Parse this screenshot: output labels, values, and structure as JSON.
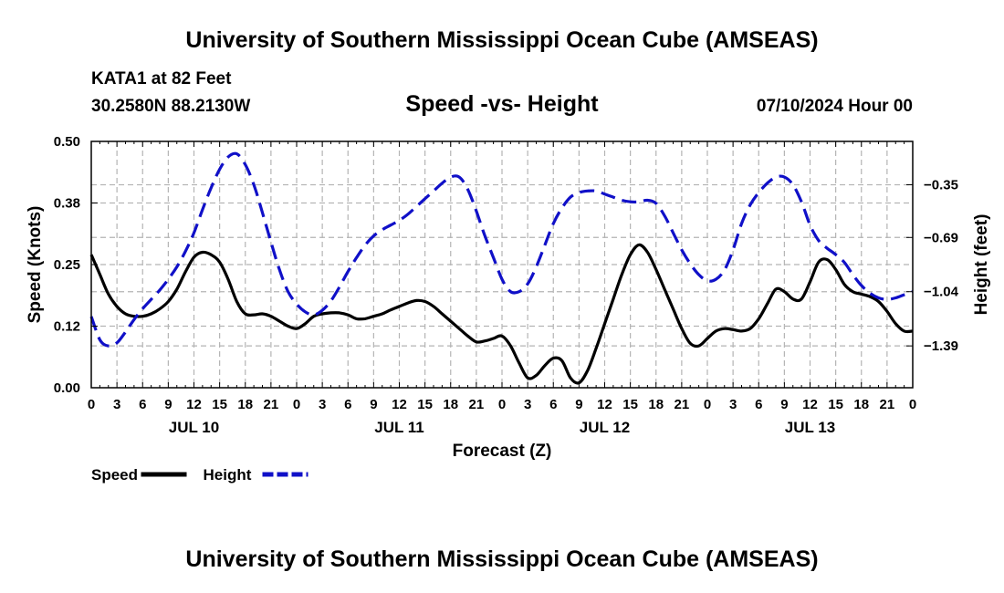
{
  "header": {
    "title": "University of Southern Mississippi Ocean Cube (AMSEAS)",
    "station": "KATA1 at 82 Feet",
    "coordinates": "30.2580N  88.2130W",
    "chart_title": "Speed -vs- Height",
    "date": "07/10/2024 Hour 00"
  },
  "footer": {
    "title": "University of Southern Mississippi Ocean Cube (AMSEAS)"
  },
  "colors": {
    "speed": "#000000",
    "height": "#1010c8",
    "grid": "#b4b4b4"
  },
  "chart_data": {
    "type": "line",
    "title": "Speed -vs- Height",
    "xlabel": "Forecast (Z)",
    "ylabel": "Speed (Knots)",
    "y2label": "Height (feet)",
    "xlim": [
      0,
      96
    ],
    "ylim": [
      0,
      0.5
    ],
    "y2lim": [
      -1.66,
      -0.07
    ],
    "x_ticks": [
      0,
      3,
      6,
      9,
      12,
      15,
      18,
      21,
      24,
      27,
      30,
      33,
      36,
      39,
      42,
      45,
      48,
      51,
      54,
      57,
      60,
      63,
      66,
      69,
      72,
      75,
      78,
      81,
      84,
      87,
      90,
      93,
      96
    ],
    "x_tick_labels": [
      "0",
      "3",
      "6",
      "9",
      "12",
      "15",
      "18",
      "21",
      "0",
      "3",
      "6",
      "9",
      "12",
      "15",
      "18",
      "21",
      "0",
      "3",
      "6",
      "9",
      "12",
      "15",
      "18",
      "21",
      "0",
      "3",
      "6",
      "9",
      "12",
      "15",
      "18",
      "21",
      "0"
    ],
    "day_labels": [
      {
        "x": 12,
        "label": "JUL 10"
      },
      {
        "x": 36,
        "label": "JUL 11"
      },
      {
        "x": 60,
        "label": "JUL 12"
      },
      {
        "x": 84,
        "label": "JUL 13"
      }
    ],
    "y_ticks": [
      0.0,
      0.125,
      0.25,
      0.375,
      0.5
    ],
    "y_tick_labels": [
      "0.00",
      "0.12",
      "0.25",
      "0.38",
      "0.50"
    ],
    "y2_ticks": [
      -1.39,
      -1.04,
      -0.69,
      -0.35
    ],
    "y2_tick_labels": [
      "−1.39",
      "−1.04",
      "−0.69",
      "−0.35"
    ],
    "grid": true,
    "legend": [
      {
        "label": "Speed",
        "series": "speed"
      },
      {
        "label": "Height",
        "series": "height"
      }
    ],
    "series": [
      {
        "name": "Speed",
        "key": "speed",
        "axis": "left",
        "style": "solid",
        "x": [
          0,
          1,
          2,
          3,
          4,
          5,
          6,
          7,
          8,
          9,
          10,
          11,
          12,
          13,
          14,
          15,
          16,
          17,
          18,
          19,
          20,
          21,
          22,
          23,
          24,
          25,
          26,
          27,
          28,
          29,
          30,
          31,
          32,
          33,
          34,
          35,
          36,
          37,
          38,
          39,
          40,
          41,
          42,
          43,
          44,
          45,
          46,
          47,
          48,
          49,
          50,
          51,
          52,
          53,
          54,
          55,
          56,
          57,
          58,
          59,
          60,
          61,
          62,
          63,
          64,
          65,
          66,
          67,
          68,
          69,
          70,
          71,
          72,
          73,
          74,
          75,
          76,
          77,
          78,
          79,
          80,
          81,
          82,
          83,
          84,
          85,
          86,
          87,
          88,
          89,
          90,
          91,
          92,
          93,
          94,
          95,
          96
        ],
        "values": [
          0.27,
          0.23,
          0.19,
          0.165,
          0.15,
          0.145,
          0.145,
          0.15,
          0.16,
          0.175,
          0.2,
          0.235,
          0.265,
          0.275,
          0.27,
          0.255,
          0.22,
          0.175,
          0.15,
          0.148,
          0.15,
          0.145,
          0.135,
          0.125,
          0.12,
          0.13,
          0.145,
          0.15,
          0.152,
          0.152,
          0.148,
          0.14,
          0.14,
          0.145,
          0.15,
          0.158,
          0.165,
          0.172,
          0.177,
          0.175,
          0.165,
          0.15,
          0.135,
          0.12,
          0.105,
          0.093,
          0.095,
          0.1,
          0.105,
          0.085,
          0.05,
          0.02,
          0.025,
          0.045,
          0.06,
          0.055,
          0.02,
          0.01,
          0.035,
          0.08,
          0.13,
          0.18,
          0.23,
          0.27,
          0.29,
          0.275,
          0.24,
          0.2,
          0.16,
          0.12,
          0.09,
          0.085,
          0.1,
          0.115,
          0.12,
          0.118,
          0.115,
          0.12,
          0.14,
          0.17,
          0.2,
          0.195,
          0.18,
          0.18,
          0.215,
          0.255,
          0.26,
          0.24,
          0.21,
          0.195,
          0.19,
          0.185,
          0.175,
          0.155,
          0.13,
          0.115,
          0.115
        ]
      },
      {
        "name": "Height",
        "key": "height",
        "axis": "right",
        "style": "dashed",
        "x": [
          0,
          1,
          2,
          3,
          4,
          5,
          6,
          7,
          8,
          9,
          10,
          11,
          12,
          13,
          14,
          15,
          16,
          17,
          18,
          19,
          20,
          21,
          22,
          23,
          24,
          25,
          26,
          27,
          28,
          29,
          30,
          31,
          32,
          33,
          34,
          35,
          36,
          37,
          38,
          39,
          40,
          41,
          42,
          43,
          44,
          45,
          46,
          47,
          48,
          49,
          50,
          51,
          52,
          53,
          54,
          55,
          56,
          57,
          58,
          59,
          60,
          61,
          62,
          63,
          64,
          65,
          66,
          67,
          68,
          69,
          70,
          71,
          72,
          73,
          74,
          75,
          76,
          77,
          78,
          79,
          80,
          81,
          82,
          83,
          84,
          85,
          86,
          87,
          88,
          89,
          90,
          91,
          92,
          93,
          94,
          95,
          96
        ],
        "values": [
          -1.2,
          -1.35,
          -1.39,
          -1.37,
          -1.3,
          -1.22,
          -1.15,
          -1.09,
          -1.03,
          -0.96,
          -0.88,
          -0.78,
          -0.66,
          -0.51,
          -0.37,
          -0.25,
          -0.17,
          -0.15,
          -0.22,
          -0.35,
          -0.53,
          -0.72,
          -0.9,
          -1.04,
          -1.12,
          -1.17,
          -1.19,
          -1.16,
          -1.1,
          -1.01,
          -0.91,
          -0.82,
          -0.74,
          -0.68,
          -0.64,
          -0.61,
          -0.58,
          -0.54,
          -0.49,
          -0.44,
          -0.39,
          -0.34,
          -0.3,
          -0.3,
          -0.38,
          -0.52,
          -0.68,
          -0.82,
          -0.96,
          -1.04,
          -1.04,
          -0.99,
          -0.88,
          -0.74,
          -0.6,
          -0.5,
          -0.43,
          -0.4,
          -0.39,
          -0.39,
          -0.41,
          -0.43,
          -0.45,
          -0.46,
          -0.46,
          -0.45,
          -0.47,
          -0.55,
          -0.66,
          -0.77,
          -0.86,
          -0.93,
          -0.97,
          -0.96,
          -0.9,
          -0.77,
          -0.6,
          -0.48,
          -0.4,
          -0.34,
          -0.3,
          -0.3,
          -0.35,
          -0.46,
          -0.61,
          -0.71,
          -0.76,
          -0.8,
          -0.85,
          -0.93,
          -1.0,
          -1.05,
          -1.08,
          -1.09,
          -1.08,
          -1.06,
          -1.04
        ]
      }
    ]
  }
}
